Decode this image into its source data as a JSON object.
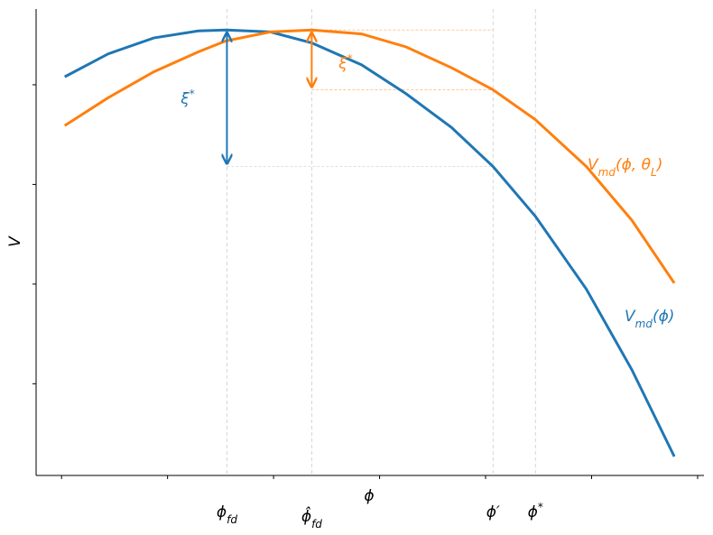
{
  "chart_data": {
    "type": "line",
    "x_label": "ϕ",
    "y_label": "V",
    "xlim": [
      -0.24,
      6.06
    ],
    "ylim": [
      0.08,
      4.76
    ],
    "xticks": [
      0,
      1,
      2,
      3,
      4,
      5,
      6
    ],
    "yticks": [
      1,
      2,
      3,
      4
    ],
    "x": [
      0.03,
      0.44,
      0.87,
      1.29,
      1.55,
      1.97,
      2.36,
      2.83,
      3.25,
      3.68,
      4.07,
      4.47,
      4.95,
      5.38,
      5.78
    ],
    "series": [
      {
        "label": [
          {
            "t": "V"
          },
          {
            "t": "md",
            "sub": true
          },
          {
            "t": "(ϕ)"
          }
        ],
        "color": "#1f77b4",
        "values": [
          4.08,
          4.31,
          4.47,
          4.54,
          4.55,
          4.53,
          4.42,
          4.2,
          3.91,
          3.57,
          3.18,
          2.68,
          1.95,
          1.14,
          0.27
        ]
      },
      {
        "label": [
          {
            "t": "V"
          },
          {
            "t": "md",
            "sub": true
          },
          {
            "t": "(ϕ, θ"
          },
          {
            "t": "L",
            "sub": true
          },
          {
            "t": ")"
          }
        ],
        "color": "#ff7f0e",
        "values": [
          3.59,
          3.87,
          4.13,
          4.33,
          4.44,
          4.53,
          4.55,
          4.51,
          4.38,
          4.17,
          3.95,
          3.65,
          3.18,
          2.64,
          2.01
        ]
      }
    ],
    "guides": [
      {
        "x": 1.56,
        "label": [
          {
            "t": "ϕ"
          },
          {
            "t": "fd",
            "sub": true
          }
        ]
      },
      {
        "x": 2.36,
        "label": [
          {
            "t": "ϕ̂"
          },
          {
            "t": "fd",
            "sub": true
          }
        ]
      },
      {
        "x": 4.07,
        "label": [
          {
            "t": "ϕ′"
          }
        ]
      },
      {
        "x": 4.47,
        "label": [
          {
            "t": "ϕ"
          },
          {
            "t": "*",
            "sup": true
          }
        ]
      }
    ],
    "hlines": [
      {
        "y": 4.55,
        "x_from": 2.36,
        "x_to": 4.07,
        "color": "#ff7f0e"
      },
      {
        "y": 3.95,
        "x_from": 2.36,
        "x_to": 4.07,
        "color": "#ff7f0e"
      },
      {
        "y": 3.18,
        "x_from": 1.56,
        "x_to": 4.07,
        "color": "#bbbbbb"
      }
    ],
    "arrows": [
      {
        "x": 1.56,
        "y_from": 4.55,
        "y_to": 3.18,
        "color": "#1f77b4",
        "label": [
          {
            "t": "ξ"
          },
          {
            "t": "*",
            "sup": true
          }
        ]
      },
      {
        "x": 2.36,
        "y_from": 4.55,
        "y_to": 3.95,
        "color": "#ff7f0e",
        "label": [
          {
            "t": "ξ"
          },
          {
            "t": "*",
            "sup": true
          }
        ]
      }
    ]
  }
}
